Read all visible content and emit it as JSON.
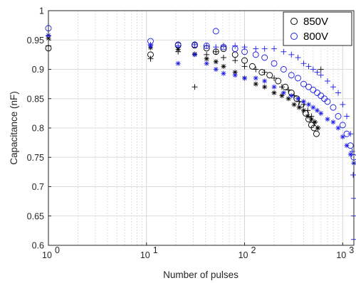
{
  "chart_data": {
    "type": "scatter",
    "xscale": "log",
    "xlim": [
      1,
      1300
    ],
    "ylim": [
      0.6,
      1.0
    ],
    "xlabel": "Number of pulses",
    "ylabel": "Capacitance (nF)",
    "xtick_labels": [
      "10",
      "10",
      "10",
      "10"
    ],
    "xtick_exponents": [
      "0",
      "1",
      "2",
      "3"
    ],
    "xtick_values": [
      1,
      10,
      100,
      1000
    ],
    "ytick_labels": [
      "0.6",
      "0.65",
      "0.7",
      "0.75",
      "0.8",
      "0.85",
      "0.9",
      "0.95",
      "1"
    ],
    "ytick_values": [
      0.6,
      0.65,
      0.7,
      0.75,
      0.8,
      0.85,
      0.9,
      0.95,
      1.0
    ],
    "grid": true,
    "legend_position": "top-right",
    "legend": [
      {
        "label": "850V",
        "color": "#000000",
        "marker": "circle"
      },
      {
        "label": "800V",
        "color": "#1a1ae6",
        "marker": "circle"
      }
    ],
    "series": [
      {
        "name": "850V",
        "color": "#000000",
        "marker_sets": {
          "circle": [
            [
              1,
              0.936
            ],
            [
              11,
              0.925
            ],
            [
              21,
              0.941
            ],
            [
              31,
              0.941
            ],
            [
              41,
              0.936
            ],
            [
              51,
              0.93
            ],
            [
              61,
              0.935
            ],
            [
              80,
              0.925
            ],
            [
              100,
              0.915
            ],
            [
              120,
              0.905
            ],
            [
              150,
              0.895
            ],
            [
              180,
              0.89
            ],
            [
              220,
              0.88
            ],
            [
              260,
              0.87
            ],
            [
              300,
              0.86
            ],
            [
              340,
              0.85
            ],
            [
              380,
              0.84
            ],
            [
              420,
              0.825
            ],
            [
              450,
              0.815
            ],
            [
              480,
              0.805
            ],
            [
              510,
              0.8
            ],
            [
              540,
              0.79
            ]
          ],
          "plus": [
            [
              1,
              0.94
            ],
            [
              11,
              0.918
            ],
            [
              21,
              0.93
            ],
            [
              31,
              0.87
            ],
            [
              41,
              0.925
            ],
            [
              51,
              0.93
            ],
            [
              61,
              0.92
            ],
            [
              80,
              0.915
            ],
            [
              100,
              0.905
            ],
            [
              130,
              0.9
            ],
            [
              160,
              0.895
            ],
            [
              200,
              0.885
            ],
            [
              240,
              0.87
            ],
            [
              280,
              0.865
            ],
            [
              320,
              0.855
            ],
            [
              360,
              0.845
            ],
            [
              400,
              0.84
            ],
            [
              440,
              0.83
            ],
            [
              480,
              0.82
            ],
            [
              520,
              0.81
            ],
            [
              560,
              0.8
            ],
            [
              600,
              0.9
            ]
          ],
          "asterisk": [
            [
              1,
              0.953
            ],
            [
              11,
              0.937
            ],
            [
              21,
              0.934
            ],
            [
              31,
              0.926
            ],
            [
              41,
              0.918
            ],
            [
              51,
              0.913
            ],
            [
              61,
              0.905
            ],
            [
              80,
              0.895
            ],
            [
              100,
              0.885
            ],
            [
              130,
              0.875
            ],
            [
              160,
              0.87
            ],
            [
              200,
              0.86
            ],
            [
              240,
              0.855
            ],
            [
              280,
              0.85
            ],
            [
              320,
              0.84
            ],
            [
              360,
              0.835
            ],
            [
              400,
              0.83
            ],
            [
              440,
              0.82
            ],
            [
              480,
              0.815
            ],
            [
              520,
              0.81
            ],
            [
              560,
              0.8
            ]
          ]
        }
      },
      {
        "name": "800V",
        "color": "#1a1ae6",
        "marker_sets": {
          "circle": [
            [
              1,
              0.97
            ],
            [
              11,
              0.948
            ],
            [
              21,
              0.942
            ],
            [
              31,
              0.942
            ],
            [
              41,
              0.94
            ],
            [
              51,
              0.965
            ],
            [
              61,
              0.938
            ],
            [
              80,
              0.935
            ],
            [
              100,
              0.93
            ],
            [
              130,
              0.925
            ],
            [
              160,
              0.92
            ],
            [
              200,
              0.91
            ],
            [
              250,
              0.9
            ],
            [
              300,
              0.89
            ],
            [
              350,
              0.885
            ],
            [
              400,
              0.875
            ],
            [
              450,
              0.87
            ],
            [
              500,
              0.865
            ],
            [
              550,
              0.86
            ],
            [
              600,
              0.855
            ],
            [
              650,
              0.85
            ],
            [
              700,
              0.845
            ],
            [
              800,
              0.835
            ],
            [
              900,
              0.82
            ],
            [
              1000,
              0.805
            ],
            [
              1100,
              0.79
            ],
            [
              1200,
              0.77
            ],
            [
              1300,
              0.75
            ]
          ],
          "plus": [
            [
              1,
              0.957
            ],
            [
              11,
              0.942
            ],
            [
              21,
              0.94
            ],
            [
              31,
              0.942
            ],
            [
              41,
              0.94
            ],
            [
              51,
              0.938
            ],
            [
              61,
              0.94
            ],
            [
              80,
              0.94
            ],
            [
              100,
              0.938
            ],
            [
              130,
              0.935
            ],
            [
              160,
              0.935
            ],
            [
              200,
              0.935
            ],
            [
              250,
              0.93
            ],
            [
              300,
              0.925
            ],
            [
              350,
              0.92
            ],
            [
              400,
              0.91
            ],
            [
              450,
              0.905
            ],
            [
              500,
              0.9
            ],
            [
              550,
              0.895
            ],
            [
              600,
              0.89
            ],
            [
              700,
              0.88
            ],
            [
              800,
              0.87
            ],
            [
              900,
              0.86
            ],
            [
              1000,
              0.84
            ],
            [
              1100,
              0.82
            ],
            [
              1200,
              0.79
            ],
            [
              1250,
              0.76
            ],
            [
              1280,
              0.72
            ],
            [
              1300,
              0.68
            ],
            [
              1300,
              0.65
            ],
            [
              1300,
              0.61
            ]
          ],
          "asterisk": [
            [
              1,
              0.958
            ],
            [
              11,
              0.94
            ],
            [
              21,
              0.91
            ],
            [
              31,
              0.925
            ],
            [
              41,
              0.91
            ],
            [
              51,
              0.9
            ],
            [
              61,
              0.893
            ],
            [
              80,
              0.89
            ],
            [
              100,
              0.885
            ],
            [
              130,
              0.885
            ],
            [
              160,
              0.88
            ],
            [
              200,
              0.87
            ],
            [
              250,
              0.86
            ],
            [
              300,
              0.855
            ],
            [
              350,
              0.85
            ],
            [
              400,
              0.845
            ],
            [
              450,
              0.84
            ],
            [
              500,
              0.835
            ],
            [
              550,
              0.83
            ],
            [
              600,
              0.825
            ],
            [
              700,
              0.815
            ],
            [
              800,
              0.81
            ],
            [
              900,
              0.8
            ],
            [
              1000,
              0.785
            ],
            [
              1100,
              0.77
            ],
            [
              1200,
              0.755
            ],
            [
              1300,
              0.74
            ]
          ]
        }
      }
    ]
  }
}
